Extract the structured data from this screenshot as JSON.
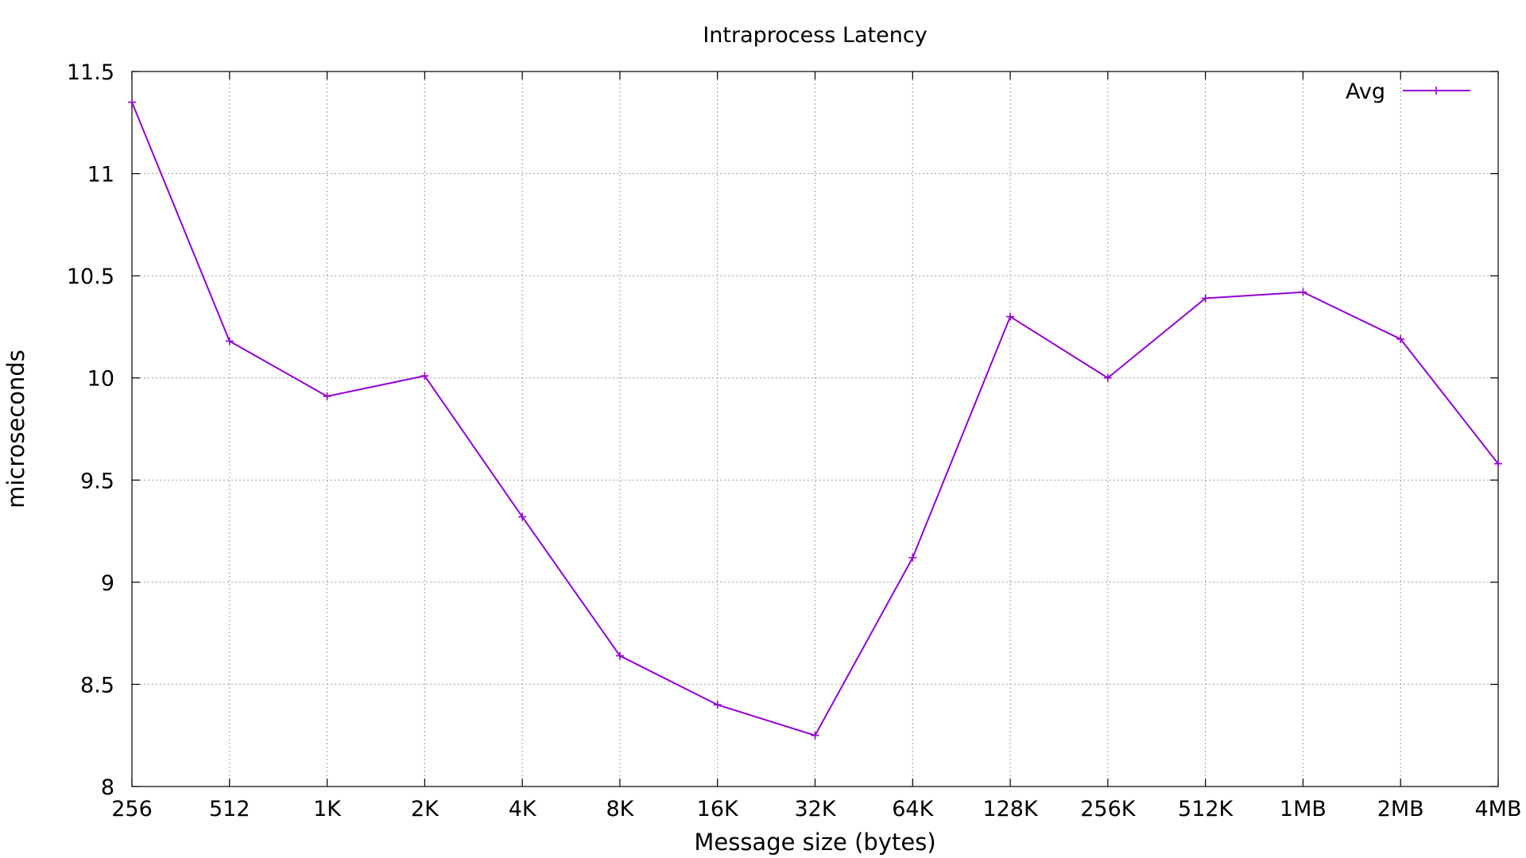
{
  "chart_data": {
    "type": "line",
    "title": "Intraprocess Latency",
    "xlabel": "Message size (bytes)",
    "ylabel": "microseconds",
    "categories": [
      "256",
      "512",
      "1K",
      "2K",
      "4K",
      "8K",
      "16K",
      "32K",
      "64K",
      "128K",
      "256K",
      "512K",
      "1MB",
      "2MB",
      "4MB"
    ],
    "ylim": [
      8,
      11.5
    ],
    "yticks": [
      "8",
      "8.5",
      "9",
      "9.5",
      "10",
      "10.5",
      "11",
      "11.5"
    ],
    "grid": true,
    "legend_position": "top-right",
    "series": [
      {
        "name": "Avg",
        "color": "#9400d3",
        "marker": "plus",
        "values": [
          11.35,
          10.18,
          9.91,
          10.01,
          9.32,
          8.64,
          8.4,
          8.25,
          9.12,
          10.3,
          10.0,
          10.39,
          10.42,
          10.19,
          9.58
        ]
      }
    ]
  }
}
